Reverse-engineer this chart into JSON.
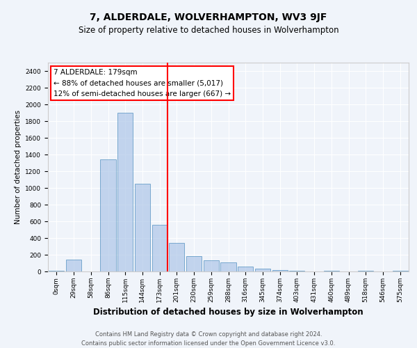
{
  "title": "7, ALDERDALE, WOLVERHAMPTON, WV3 9JF",
  "subtitle": "Size of property relative to detached houses in Wolverhampton",
  "xlabel": "Distribution of detached houses by size in Wolverhampton",
  "ylabel": "Number of detached properties",
  "bins": [
    "0sqm",
    "29sqm",
    "58sqm",
    "86sqm",
    "115sqm",
    "144sqm",
    "173sqm",
    "201sqm",
    "230sqm",
    "259sqm",
    "288sqm",
    "316sqm",
    "345sqm",
    "374sqm",
    "403sqm",
    "431sqm",
    "460sqm",
    "489sqm",
    "518sqm",
    "546sqm",
    "575sqm"
  ],
  "bar_heights": [
    10,
    140,
    0,
    1340,
    1900,
    1050,
    560,
    340,
    180,
    130,
    110,
    58,
    30,
    18,
    8,
    0,
    10,
    0,
    10,
    0,
    10
  ],
  "bar_color": "#aec6e8",
  "bar_edge_color": "#4f8fbf",
  "bar_alpha": 0.7,
  "vline_bin_index": 6,
  "vline_color": "red",
  "annotation_text": "7 ALDERDALE: 179sqm\n← 88% of detached houses are smaller (5,017)\n12% of semi-detached houses are larger (667) →",
  "annotation_box_color": "white",
  "annotation_box_edge_color": "red",
  "annotation_fontsize": 7.5,
  "ylim": [
    0,
    2500
  ],
  "yticks": [
    0,
    200,
    400,
    600,
    800,
    1000,
    1200,
    1400,
    1600,
    1800,
    2000,
    2200,
    2400
  ],
  "footer": "Contains HM Land Registry data © Crown copyright and database right 2024.\nContains public sector information licensed under the Open Government Licence v3.0.",
  "background_color": "#f0f4fa",
  "grid_color": "white",
  "title_fontsize": 10,
  "subtitle_fontsize": 8.5,
  "xlabel_fontsize": 8.5,
  "ylabel_fontsize": 7.5,
  "tick_fontsize": 6.5,
  "footer_fontsize": 6.0
}
